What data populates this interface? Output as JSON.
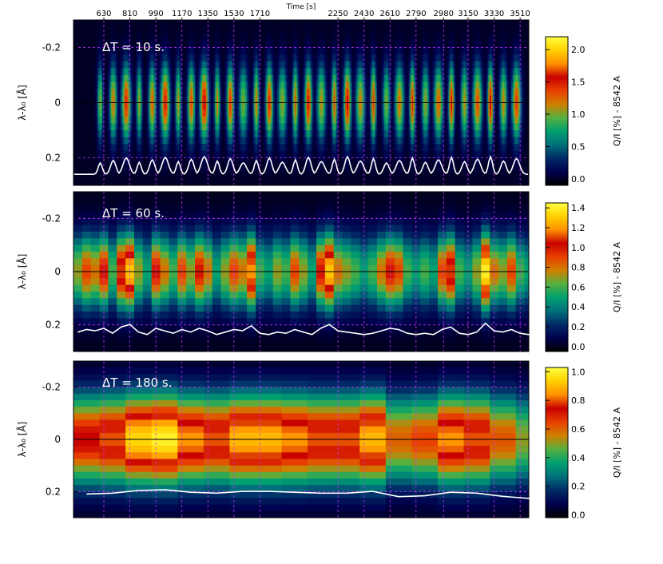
{
  "figure": {
    "top_axis_title": "Time [s]",
    "top_ticks": [
      "630",
      "810",
      "990",
      "1170",
      "1350",
      "1530",
      "1710",
      "2250",
      "2430",
      "2610",
      "2790",
      "2980",
      "3150",
      "3330",
      "3510"
    ],
    "colors": {
      "grid": "#cc33ff",
      "zero_line": "#000000",
      "curve": "#ffffff",
      "background": "#00001a"
    },
    "colormap": [
      "#000000",
      "#00004d",
      "#002a66",
      "#00707a",
      "#00a070",
      "#55b040",
      "#d08000",
      "#e84000",
      "#c80000",
      "#ff9000",
      "#ffd000",
      "#ffff40"
    ]
  },
  "chart_data": [
    {
      "type": "heatmap",
      "annotation": "ΔT = 10 s.",
      "ylabel": "λ-λ₀ [Å]",
      "yticks": [
        "-0.2",
        "0",
        "0.2"
      ],
      "ylim": [
        0.3,
        -0.3
      ],
      "colorbar": {
        "label": "Q/I [%] - 8542 A",
        "ticks": [
          "0.0",
          "0.5",
          "1.0",
          "1.5",
          "2.0"
        ],
        "range": [
          -0.1,
          2.2
        ]
      },
      "cadence_s": 10,
      "peaks_s": [
        600,
        690,
        780,
        870,
        960,
        1050,
        1140,
        1230,
        1320,
        1410,
        1500,
        1590,
        1680,
        1770,
        1860,
        1950,
        2040,
        2130,
        2220,
        2310,
        2400,
        2490,
        2580,
        2670,
        2760,
        2850,
        2940,
        3030,
        3120,
        3210,
        3300,
        3390,
        3480
      ],
      "peak_amplitude": 1.2,
      "line_color": "#ffffff"
    },
    {
      "type": "heatmap",
      "annotation": "ΔT = 60 s.",
      "ylabel": "λ-λ₀ [Å]",
      "yticks": [
        "-0.2",
        "0",
        "0.2"
      ],
      "ylim": [
        0.3,
        -0.3
      ],
      "colorbar": {
        "label": "Q/I [%] - 8542 A",
        "ticks": [
          "0.0",
          "0.2",
          "0.4",
          "0.6",
          "0.8",
          "1.0",
          "1.2",
          "1.4"
        ],
        "range": [
          -0.05,
          1.45
        ]
      },
      "cadence_s": 60,
      "column_values": [
        0.7,
        0.9,
        0.8,
        1.0,
        0.6,
        1.1,
        1.3,
        0.7,
        0.5,
        1.0,
        0.8,
        0.6,
        0.9,
        0.7,
        1.0,
        0.8,
        0.5,
        0.7,
        0.9,
        0.8,
        1.2,
        0.6,
        0.5,
        0.7,
        0.6,
        0.9,
        0.7,
        0.5,
        1.0,
        1.3,
        0.8,
        0.7,
        0.6,
        0.5,
        0.6,
        0.8,
        1.0,
        0.9,
        0.6,
        0.5,
        0.6,
        0.5,
        0.9,
        1.1,
        0.6,
        0.5,
        0.7,
        1.4,
        0.8,
        0.7,
        0.9,
        0.6,
        0.5,
        0.8,
        0.6,
        0.7,
        1.0,
        0.8,
        0.6,
        0.7,
        0.5,
        0.9,
        0.6
      ],
      "line_color": "#ffffff"
    },
    {
      "type": "heatmap",
      "annotation": "ΔT = 180 s.",
      "ylabel": "λ-λ₀ [Å]",
      "yticks": [
        "-0.2",
        "0",
        "0.2"
      ],
      "ylim": [
        0.3,
        -0.3
      ],
      "colorbar": {
        "label": "Q/I [%] - 8542 A",
        "ticks": [
          "0.0",
          "0.2",
          "0.4",
          "0.6",
          "0.8",
          "1.0"
        ],
        "range": [
          -0.02,
          1.03
        ]
      },
      "cadence_s": 180,
      "column_values": [
        0.75,
        0.8,
        0.95,
        1.0,
        0.85,
        0.8,
        0.9,
        0.9,
        0.85,
        0.8,
        0.8,
        0.9,
        0.6,
        0.65,
        0.85,
        0.8,
        0.62,
        0.5,
        0.95,
        0.85,
        0.85,
        0.8
      ],
      "line_color": "#ffffff"
    }
  ]
}
